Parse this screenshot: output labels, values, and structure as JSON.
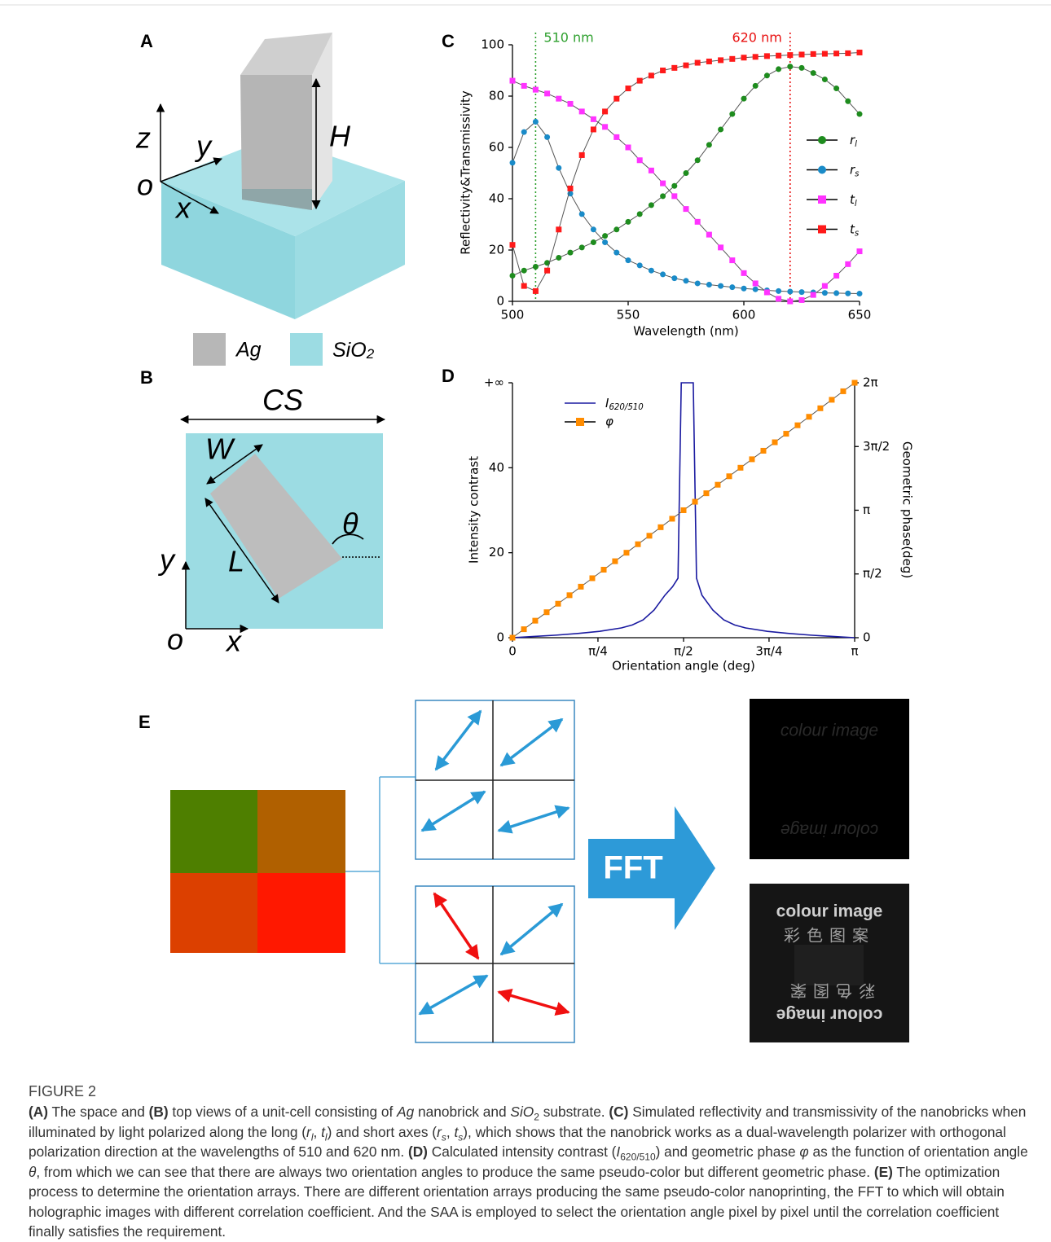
{
  "panel_labels": [
    "A",
    "B",
    "C",
    "D",
    "E"
  ],
  "diagram_a": {
    "axes": [
      "z",
      "y",
      "o",
      "x"
    ],
    "height": "H",
    "legend": [
      "Ag",
      "SiO2"
    ]
  },
  "diagram_b": {
    "cell_size": "CS",
    "width": "W",
    "length": "L",
    "angle": "θ",
    "axes": [
      "y",
      "o",
      "x"
    ]
  },
  "diagram_e": {
    "arrow": "FFT",
    "image_text": [
      "colour image",
      "彩色图案"
    ]
  },
  "chart_data": [
    {
      "type": "line",
      "xlabel": "Wavelength (nm)",
      "ylabel": "Reflectivity&Transmissivity",
      "x": [
        500,
        505,
        510,
        515,
        520,
        525,
        530,
        535,
        540,
        545,
        550,
        555,
        560,
        565,
        570,
        575,
        580,
        585,
        590,
        595,
        600,
        605,
        610,
        615,
        620,
        625,
        630,
        635,
        640,
        645,
        650
      ],
      "series": [
        {
          "name": "rl",
          "color": "#1e8c1e",
          "marker": "circle",
          "values": [
            10,
            12,
            13.5,
            15,
            17,
            19,
            21,
            23,
            25.5,
            28,
            31,
            34,
            37.5,
            41,
            45,
            50,
            55,
            61,
            67,
            73,
            79,
            84,
            88,
            90.5,
            91.5,
            91,
            89,
            86.5,
            83,
            78,
            73
          ]
        },
        {
          "name": "rs",
          "color": "#1a8bc8",
          "marker": "circle",
          "values": [
            54,
            66,
            70,
            64,
            52,
            42,
            34,
            28,
            23,
            19,
            16,
            14,
            12,
            10.5,
            9,
            8,
            7,
            6.5,
            6,
            5.5,
            5,
            4.7,
            4.3,
            4,
            3.8,
            3.6,
            3.5,
            3.3,
            3.2,
            3.1,
            3
          ]
        },
        {
          "name": "tl",
          "color": "#ff33ff",
          "marker": "square",
          "values": [
            86,
            84,
            82.5,
            81,
            79,
            77,
            74,
            71,
            68,
            64,
            60,
            55,
            51,
            46,
            41,
            36,
            31,
            26,
            21,
            16,
            11,
            7,
            3.5,
            1,
            0,
            0.5,
            2.5,
            6,
            10,
            14.5,
            19.5
          ]
        },
        {
          "name": "ts",
          "color": "#ff1a1a",
          "marker": "square",
          "values": [
            22,
            6,
            4,
            12,
            28,
            44,
            57,
            67,
            74,
            79,
            83,
            86,
            88,
            90,
            91,
            92,
            93,
            93.5,
            94,
            94.5,
            95,
            95.3,
            95.6,
            95.8,
            96,
            96.2,
            96.4,
            96.5,
            96.6,
            96.7,
            97
          ]
        }
      ],
      "vlines": [
        {
          "value": 510,
          "label": "510 nm",
          "color": "#2ea02e"
        },
        {
          "value": 620,
          "label": "620 nm",
          "color": "#e81010"
        }
      ],
      "xlim": [
        500,
        650
      ],
      "xticks": [
        500,
        550,
        600,
        650
      ],
      "ylim": [
        0,
        100
      ],
      "yticks": [
        0,
        20,
        40,
        60,
        80,
        100
      ]
    },
    {
      "type": "line",
      "xlabel": "Orientation angle (deg)",
      "ylabel": "Intensity contrast",
      "y2label": "Geometric phase(deg)",
      "series": [
        {
          "name": "I620/510",
          "color": "#1a1aa0",
          "x": [
            0,
            0.2,
            0.4,
            0.6,
            0.8,
            1.0,
            1.1,
            1.2,
            1.3,
            1.4,
            1.47,
            1.52,
            1.55,
            1.66,
            1.69,
            1.74,
            1.84,
            1.94,
            2.04,
            2.14,
            2.34,
            2.54,
            2.74,
            2.94,
            3.142
          ],
          "values": [
            0,
            0.3,
            0.6,
            1,
            1.5,
            2.3,
            3,
            4.2,
            6.5,
            10,
            12,
            14,
            60,
            60,
            14,
            10,
            6.5,
            4.2,
            3,
            2.3,
            1.5,
            1,
            0.6,
            0.3,
            0
          ]
        },
        {
          "name": "φ",
          "color": "#ff8c00",
          "marker": "square",
          "axis": "y2",
          "x": [
            0,
            0.105,
            0.209,
            0.314,
            0.419,
            0.524,
            0.628,
            0.733,
            0.838,
            0.942,
            1.047,
            1.152,
            1.257,
            1.361,
            1.466,
            1.571,
            1.676,
            1.78,
            1.885,
            1.99,
            2.094,
            2.199,
            2.304,
            2.409,
            2.513,
            2.618,
            2.723,
            2.827,
            2.932,
            3.037,
            3.142
          ],
          "values": [
            0,
            0.209,
            0.419,
            0.628,
            0.838,
            1.047,
            1.257,
            1.466,
            1.676,
            1.885,
            2.094,
            2.304,
            2.513,
            2.723,
            2.932,
            3.142,
            3.351,
            3.56,
            3.77,
            3.979,
            4.189,
            4.398,
            4.608,
            4.817,
            5.027,
            5.236,
            5.445,
            5.655,
            5.864,
            6.074,
            6.283
          ]
        }
      ],
      "xlim": [
        0,
        3.142
      ],
      "xticks": [
        0,
        {
          "value": 0.785,
          "label": "π/4"
        },
        {
          "value": 1.571,
          "label": "π/2"
        },
        {
          "value": 2.356,
          "label": "3π/4"
        },
        {
          "value": 3.142,
          "label": "π"
        }
      ],
      "ylim": [
        0,
        60
      ],
      "yticks": [
        0,
        20,
        40,
        {
          "value": 60,
          "label": "+∞"
        }
      ],
      "y2lim": [
        0,
        6.283
      ],
      "y2ticks": [
        0,
        {
          "value": 1.571,
          "label": "π/2"
        },
        {
          "value": 3.142,
          "label": "π"
        },
        {
          "value": 4.712,
          "label": "3π/2"
        },
        {
          "value": 6.283,
          "label": "2π"
        }
      ]
    }
  ],
  "figure": {
    "label": "FIGURE 2",
    "caption": [
      {
        "text": "(A)",
        "style": "b"
      },
      {
        "text": " The space and "
      },
      {
        "text": "(B)",
        "style": "b"
      },
      {
        "text": " top views of a unit-cell consisting of "
      },
      {
        "text": "Ag",
        "style": "i"
      },
      {
        "text": " nanobrick and "
      },
      {
        "text": "SiO",
        "style": "i"
      },
      {
        "text": "2",
        "style": "sub"
      },
      {
        "text": " substrate. "
      },
      {
        "text": "(C)",
        "style": "b"
      },
      {
        "text": " Simulated reflectivity and transmissivity of the nanobricks when illuminated by light polarized along the long ("
      },
      {
        "text": "r",
        "style": "i"
      },
      {
        "text": "l",
        "style": "isub"
      },
      {
        "text": ", "
      },
      {
        "text": "t",
        "style": "i"
      },
      {
        "text": "l",
        "style": "isub"
      },
      {
        "text": ") and short axes ("
      },
      {
        "text": "r",
        "style": "i"
      },
      {
        "text": "s",
        "style": "isub"
      },
      {
        "text": ", "
      },
      {
        "text": "t",
        "style": "i"
      },
      {
        "text": "s",
        "style": "isub"
      },
      {
        "text": "), which shows that the nanobrick works as a dual-wavelength polarizer with orthogonal polarization direction at the wavelengths of 510 and 620 nm. "
      },
      {
        "text": "(D)",
        "style": "b"
      },
      {
        "text": " Calculated intensity contrast ("
      },
      {
        "text": "I",
        "style": "i"
      },
      {
        "text": "620/510",
        "style": "sub"
      },
      {
        "text": ") and geometric phase "
      },
      {
        "text": "φ",
        "style": "i"
      },
      {
        "text": " as the function of orientation angle "
      },
      {
        "text": "θ",
        "style": "i"
      },
      {
        "text": ", from which we can see that there are always two orientation angles to produce the same pseudo-color but different geometric phase. "
      },
      {
        "text": "(E)",
        "style": "b"
      },
      {
        "text": " The optimization process to determine the orientation arrays. There are different orientation arrays producing the same pseudo-color nanoprinting, the FFT to which will obtain holographic images with different correlation coefficient. And the SAA is employed to select the orientation angle pixel by pixel until the correlation coefficient finally satisfies the requirement."
      }
    ]
  }
}
